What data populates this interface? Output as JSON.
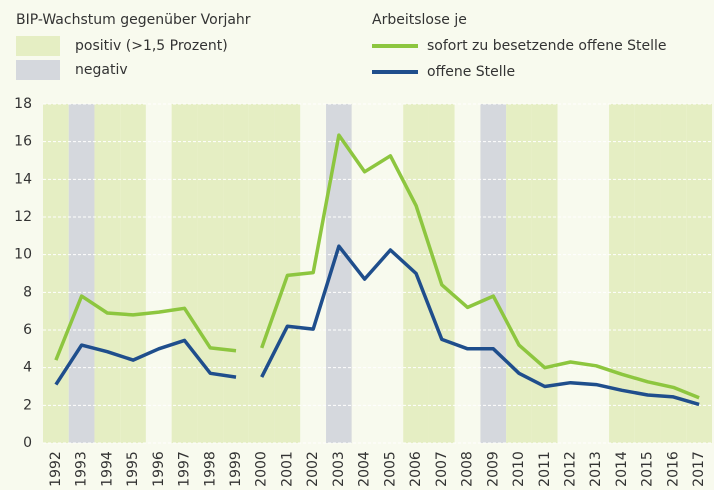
{
  "chart_data": {
    "type": "line",
    "band_legend_title": "BIP-Wachstum gegenüber Vorjahr",
    "band_legend": [
      {
        "name": "positiv (>1,5 Prozent)",
        "color": "#e5eec3"
      },
      {
        "name": "negativ",
        "color": "#d5d8dd"
      }
    ],
    "band_colors": [
      "#e5eec3",
      "#d5d8dd",
      "#e5eec3",
      "#e5eec3",
      "#f8faee",
      "#e5eec3",
      "#e5eec3",
      "#e5eec3",
      "#e5eec3",
      "#e5eec3",
      "#f8faee",
      "#d5d8dd",
      "#f8faee",
      "#f8faee",
      "#e5eec3",
      "#e5eec3",
      "#f8faee",
      "#d5d8dd",
      "#e5eec3",
      "#e5eec3",
      "#f8faee",
      "#f8faee",
      "#e5eec3",
      "#e5eec3",
      "#e5eec3",
      "#e5eec3"
    ],
    "legend_title": "Arbeitslose je",
    "categories": [
      "1992",
      "1993",
      "1994",
      "1995",
      "1996",
      "1997",
      "1998",
      "1999",
      "2000",
      "2001",
      "2002",
      "2003",
      "2004",
      "2005",
      "2006",
      "2007",
      "2008",
      "2009",
      "2010",
      "2011",
      "2012",
      "2013",
      "2014",
      "2015",
      "2016",
      "2017"
    ],
    "line_breaks": [
      8
    ],
    "series": [
      {
        "name": "sofort zu besetzende offene Stelle",
        "color": "#8dc63f",
        "values": [
          4.4,
          7.8,
          6.9,
          6.8,
          6.95,
          7.15,
          5.05,
          4.9,
          5.05,
          8.9,
          9.05,
          16.35,
          14.4,
          15.25,
          12.6,
          8.4,
          7.2,
          7.8,
          5.2,
          4.0,
          4.3,
          4.1,
          3.65,
          3.25,
          2.95,
          2.4
        ]
      },
      {
        "name": "offene Stelle",
        "color": "#1f4e8c",
        "values": [
          3.1,
          5.2,
          4.85,
          4.4,
          5.0,
          5.45,
          3.7,
          3.5,
          3.5,
          6.2,
          6.05,
          10.45,
          8.7,
          10.25,
          9.0,
          5.5,
          5.0,
          5.0,
          3.7,
          3.0,
          3.2,
          3.1,
          2.8,
          2.55,
          2.45,
          2.05
        ]
      }
    ],
    "ylim": [
      0,
      18
    ],
    "yticks": [
      0,
      2,
      4,
      6,
      8,
      10,
      12,
      14,
      16,
      18
    ],
    "grid": true
  }
}
